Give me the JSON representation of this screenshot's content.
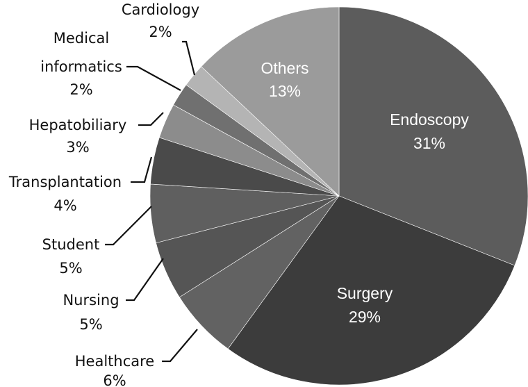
{
  "chart_data": {
    "type": "pie",
    "start_angle_deg": 0,
    "direction": "clockwise",
    "slices": [
      {
        "label": "Endoscopy",
        "value": 31,
        "display": "31%",
        "color": "#5c5c5c",
        "label_position": "inside"
      },
      {
        "label": "Surgery",
        "value": 29,
        "display": "29%",
        "color": "#3c3c3c",
        "label_position": "inside"
      },
      {
        "label": "Healthcare",
        "value": 6,
        "display": "6%",
        "color": "#626262",
        "label_position": "outside"
      },
      {
        "label": "Nursing",
        "value": 5,
        "display": "5%",
        "color": "#555555",
        "label_position": "outside"
      },
      {
        "label": "Student",
        "value": 5,
        "display": "5%",
        "color": "#5f5f5f",
        "label_position": "outside"
      },
      {
        "label": "Transplantation",
        "value": 4,
        "display": "4%",
        "color": "#4a4a4a",
        "label_position": "outside"
      },
      {
        "label": "Hepatobiliary",
        "value": 3,
        "display": "3%",
        "color": "#8c8c8c",
        "label_position": "outside"
      },
      {
        "label": "Medical informatics",
        "value": 2,
        "display": "2%",
        "color": "#707070",
        "label_position": "outside"
      },
      {
        "label": "Cardiology",
        "value": 2,
        "display": "2%",
        "color": "#b4b4b4",
        "label_position": "outside"
      },
      {
        "label": "Others",
        "value": 13,
        "display": "13%",
        "color": "#9b9b9b",
        "label_position": "inside"
      }
    ]
  },
  "labels": {
    "endoscopy": {
      "name": "Endoscopy",
      "pct": "31%"
    },
    "surgery": {
      "name": "Surgery",
      "pct": "29%"
    },
    "others": {
      "name": "Others",
      "pct": "13%"
    },
    "healthcare": {
      "name": "Healthcare",
      "pct": "6%"
    },
    "nursing": {
      "name": "Nursing",
      "pct": "5%"
    },
    "student": {
      "name": "Student",
      "pct": "5%"
    },
    "transplantation": {
      "name": "Transplantation",
      "pct": "4%"
    },
    "hepatobiliary": {
      "name": "Hepatobiliary",
      "pct": "3%"
    },
    "medical_informatics": {
      "line1": "Medical",
      "line2": "informatics",
      "pct": "2%"
    },
    "cardiology": {
      "name": "Cardiology",
      "pct": "2%"
    }
  }
}
